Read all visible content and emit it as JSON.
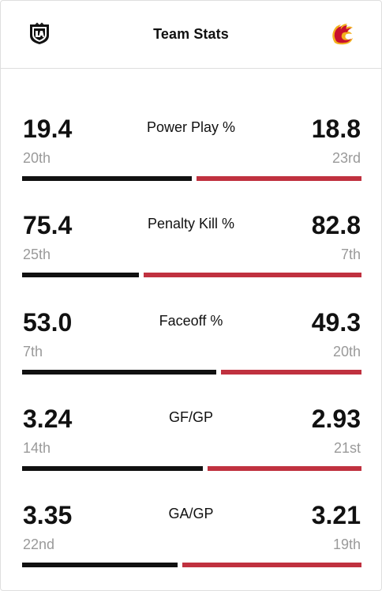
{
  "header": {
    "title": "Team Stats",
    "home_logo": "la-kings-logo",
    "away_logo": "calgary-flames-logo"
  },
  "colors": {
    "home": "#111111",
    "away": "#c0313f",
    "rank": "#9a9a9a"
  },
  "stats": [
    {
      "label": "Power Play %",
      "home_value": "19.4",
      "home_rank": "20th",
      "away_value": "18.8",
      "away_rank": "23rd",
      "home_share": 0.508
    },
    {
      "label": "Penalty Kill %",
      "home_value": "75.4",
      "home_rank": "25th",
      "away_value": "82.8",
      "away_rank": "7th",
      "home_share": 0.35
    },
    {
      "label": "Faceoff %",
      "home_value": "53.0",
      "home_rank": "7th",
      "away_value": "49.3",
      "away_rank": "20th",
      "home_share": 0.58
    },
    {
      "label": "GF/GP",
      "home_value": "3.24",
      "home_rank": "14th",
      "away_value": "2.93",
      "away_rank": "21st",
      "home_share": 0.54
    },
    {
      "label": "GA/GP",
      "home_value": "3.35",
      "home_rank": "22nd",
      "away_value": "3.21",
      "away_rank": "19th",
      "home_share": 0.465
    }
  ]
}
